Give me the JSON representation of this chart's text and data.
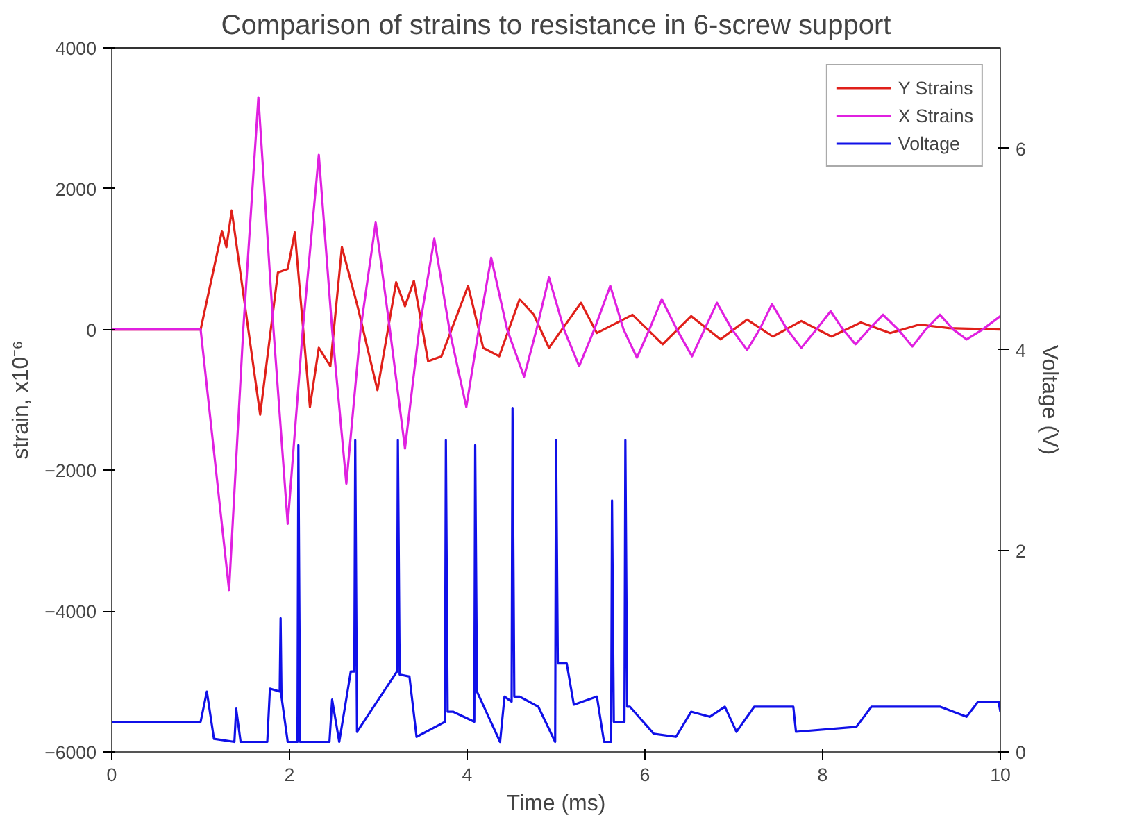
{
  "chart_data": {
    "type": "line",
    "title": "Comparison of strains to resistance in 6-screw support",
    "xlabel": "Time (ms)",
    "ylabel": "strain, x10⁻⁶",
    "y2label": "Voltage (V)",
    "xlim": [
      0,
      10
    ],
    "xticks": [
      0,
      2,
      4,
      6,
      8,
      10
    ],
    "ylim": [
      -6000,
      4000
    ],
    "yticks": [
      -6000,
      -4000,
      -2000,
      0,
      2000,
      4000
    ],
    "y2lim": [
      0,
      7
    ],
    "y2ticks": [
      0,
      2,
      4,
      6
    ],
    "grid": false,
    "legend": "top right",
    "marker": "none",
    "line_style": "solid",
    "series": [
      {
        "name": "Y Strains",
        "color": "#e0201a",
        "x": [
          0,
          1.0,
          1.24,
          1.29,
          1.35,
          1.67,
          1.87,
          1.98,
          2.06,
          2.23,
          2.33,
          2.46,
          2.59,
          2.77,
          2.99,
          3.2,
          3.3,
          3.4,
          3.56,
          3.71,
          4.01,
          4.18,
          4.36,
          4.59,
          4.75,
          4.92,
          5.28,
          5.46,
          5.86,
          6.2,
          6.52,
          6.85,
          7.15,
          7.44,
          7.76,
          8.1,
          8.43,
          8.76,
          9.09,
          9.42,
          10
        ],
        "values": [
          0,
          0,
          1400,
          1170,
          1690,
          -1210,
          810,
          860,
          1380,
          -1100,
          -260,
          -520,
          1170,
          310,
          -860,
          670,
          330,
          690,
          -450,
          -380,
          620,
          -260,
          -380,
          430,
          210,
          -260,
          380,
          -50,
          210,
          -210,
          190,
          -140,
          140,
          -100,
          120,
          -100,
          100,
          -50,
          70,
          20,
          0
        ]
      },
      {
        "name": "X Strains",
        "color": "#e020e0",
        "x": [
          0,
          1.0,
          1.32,
          1.48,
          1.65,
          1.82,
          1.98,
          2.15,
          2.33,
          2.48,
          2.64,
          2.8,
          2.97,
          3.13,
          3.3,
          3.46,
          3.63,
          3.8,
          3.99,
          4.13,
          4.27,
          4.45,
          4.64,
          4.78,
          4.92,
          5.09,
          5.26,
          5.43,
          5.61,
          5.76,
          5.91,
          6.05,
          6.19,
          6.36,
          6.53,
          6.67,
          6.81,
          6.98,
          7.15,
          7.29,
          7.43,
          7.6,
          7.76,
          7.93,
          8.09,
          8.23,
          8.37,
          8.52,
          8.68,
          8.85,
          9.01,
          9.16,
          9.32,
          9.47,
          9.62,
          9.8,
          10
        ],
        "values": [
          0,
          0,
          -3700,
          0,
          3300,
          0,
          -2760,
          0,
          2480,
          0,
          -2190,
          0,
          1520,
          0,
          -1690,
          0,
          1290,
          0,
          -1100,
          0,
          1020,
          0,
          -670,
          0,
          740,
          0,
          -520,
          0,
          620,
          0,
          -400,
          0,
          430,
          0,
          -380,
          0,
          380,
          0,
          -290,
          0,
          360,
          0,
          -260,
          0,
          260,
          0,
          -210,
          0,
          210,
          0,
          -240,
          0,
          210,
          0,
          -140,
          0,
          190
        ]
      },
      {
        "name": "Voltage",
        "color": "#1010e8",
        "axis": "y2",
        "x": [
          0,
          1.0,
          1.07,
          1.15,
          1.38,
          1.4,
          1.45,
          1.75,
          1.78,
          1.89,
          1.9,
          1.91,
          1.98,
          2.09,
          2.1,
          2.12,
          2.45,
          2.48,
          2.56,
          2.69,
          2.73,
          2.74,
          2.76,
          3.21,
          3.22,
          3.24,
          3.35,
          3.43,
          3.75,
          3.76,
          3.78,
          3.84,
          4.08,
          4.09,
          4.11,
          4.37,
          4.42,
          4.5,
          4.51,
          4.53,
          4.59,
          4.8,
          4.99,
          5.0,
          5.02,
          5.12,
          5.2,
          5.46,
          5.54,
          5.62,
          5.63,
          5.65,
          5.69,
          5.77,
          5.78,
          5.8,
          5.83,
          6.1,
          6.35,
          6.52,
          6.73,
          6.9,
          7.03,
          7.23,
          7.67,
          7.7,
          8.38,
          8.55,
          9.32,
          9.62,
          9.75,
          9.98,
          10
        ],
        "values": [
          0.3,
          0.3,
          0.6,
          0.13,
          0.1,
          0.43,
          0.1,
          0.1,
          0.63,
          0.6,
          1.33,
          0.55,
          0.1,
          0.1,
          3.05,
          0.1,
          0.1,
          0.52,
          0.1,
          0.8,
          0.8,
          3.1,
          0.2,
          0.8,
          3.1,
          0.77,
          0.75,
          0.15,
          0.3,
          3.1,
          0.4,
          0.4,
          0.3,
          3.05,
          0.6,
          0.1,
          0.55,
          0.5,
          3.42,
          0.55,
          0.55,
          0.45,
          0.1,
          3.1,
          0.88,
          0.88,
          0.47,
          0.55,
          0.1,
          0.1,
          2.5,
          0.3,
          0.3,
          0.3,
          3.1,
          0.45,
          0.45,
          0.18,
          0.15,
          0.4,
          0.35,
          0.45,
          0.2,
          0.45,
          0.45,
          0.2,
          0.25,
          0.45,
          0.45,
          0.35,
          0.5,
          0.5,
          0.4
        ]
      }
    ]
  }
}
